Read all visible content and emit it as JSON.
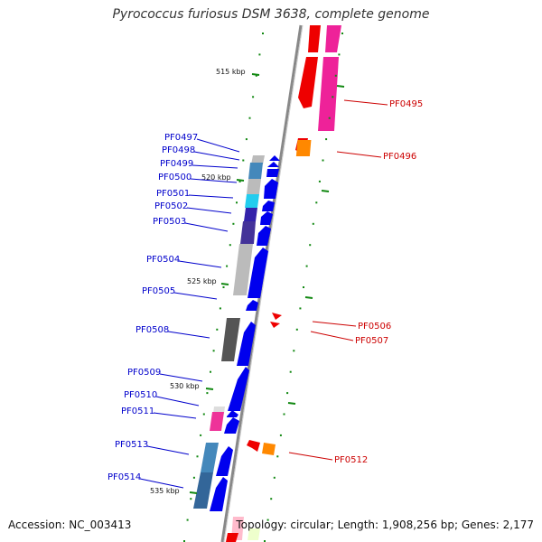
{
  "title": "Pyrococcus furiosus DSM 3638, complete genome",
  "footer": {
    "accession": "Accession: NC_003413",
    "summary": "Topology: circular; Length: 1,908,256 bp; Genes: 2,177"
  },
  "scale_ticks": [
    {
      "label": "515 kbp",
      "pos": 515000
    },
    {
      "label": "520 kbp",
      "pos": 520000
    },
    {
      "label": "525 kbp",
      "pos": 525000
    },
    {
      "label": "530 kbp",
      "pos": 530000
    },
    {
      "label": "535 kbp",
      "pos": 535000
    }
  ],
  "genes_forward": [
    {
      "label": "PF0497",
      "start": 518950,
      "end": 519050
    },
    {
      "label": "PF0498",
      "start": 519100,
      "end": 519300
    },
    {
      "label": "PF0499",
      "start": 519350,
      "end": 520700
    },
    {
      "label": "PF0500",
      "start": 520750,
      "end": 521400
    },
    {
      "label": "PF0501",
      "start": 521450,
      "end": 521950
    },
    {
      "label": "PF0502",
      "start": 522000,
      "end": 522400
    },
    {
      "label": "PF0503",
      "start": 522450,
      "end": 523000
    },
    {
      "label": "PF0504",
      "start": 523100,
      "end": 525800
    },
    {
      "label": "PF0505",
      "start": 526000,
      "end": 526300
    },
    {
      "label": "PF0508",
      "start": 527300,
      "end": 529300
    },
    {
      "label": "PF0509",
      "start": 529400,
      "end": 531300
    },
    {
      "label": "PF0510",
      "start": 531400,
      "end": 531700
    },
    {
      "label": "PF0511",
      "start": 531750,
      "end": 532500
    },
    {
      "label": "PF0513",
      "start": 533200,
      "end": 534800
    },
    {
      "label": "PF0514",
      "start": 534900,
      "end": 536900
    }
  ],
  "genes_reverse": [
    {
      "label": "PF0495",
      "start": 513000,
      "end": 517000
    },
    {
      "label": "PF0496",
      "start": 517100,
      "end": 517900
    },
    {
      "label": "PF0506",
      "start": 526500,
      "end": 526700
    },
    {
      "label": "PF0507",
      "start": 526800,
      "end": 527000
    },
    {
      "label": "PF0512",
      "start": 532800,
      "end": 533600
    }
  ],
  "colors": {
    "forward_gene": "#0000ee",
    "reverse_gene": "#ee0000",
    "left_label_line": "#0000cc",
    "right_label_line": "#cc0000",
    "tick": "#118811",
    "backbone": "#888888",
    "ruler_dots": "#118811",
    "magenta": "#ee2299",
    "orange": "#ff8800",
    "cyan": "#22ccee",
    "steel": "#4488bb",
    "indigo": "#443399",
    "gray": "#bbbbbb",
    "darkgray": "#555555",
    "pink": "#ee3399"
  }
}
